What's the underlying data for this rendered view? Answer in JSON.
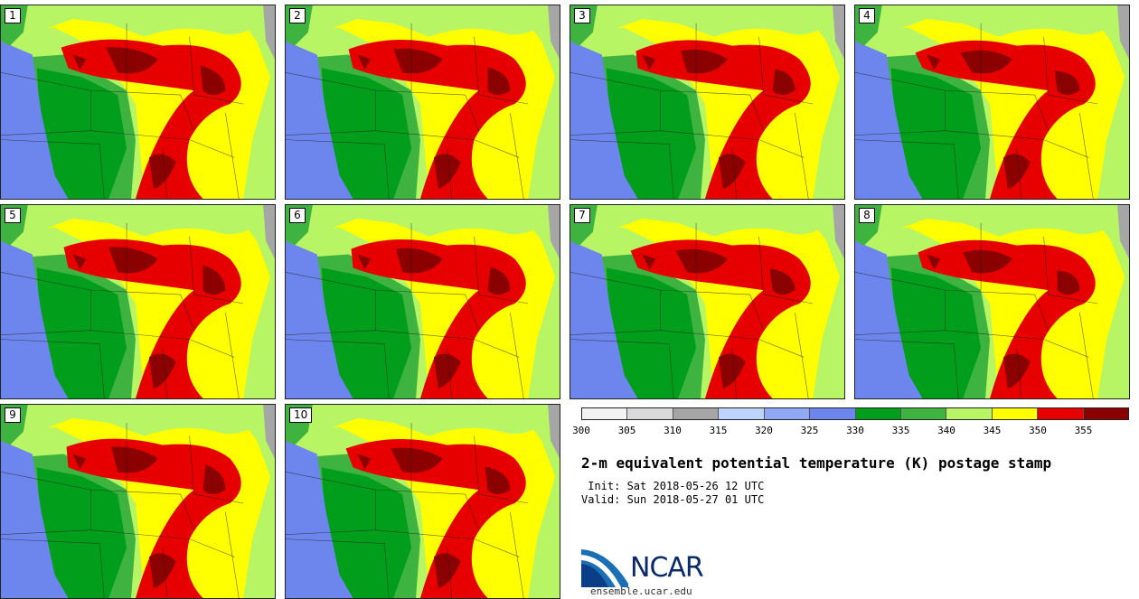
{
  "title": "2-m equivalent potential temperature (K) postage stamp",
  "init_line": " Init: Sat 2018-05-26 12 UTC",
  "valid_line": "Valid: Sun 2018-05-27 01 UTC",
  "logo_text": "NCAR",
  "url": "ensemble.ucar.edu",
  "members": [
    "1",
    "2",
    "3",
    "4",
    "5",
    "6",
    "7",
    "8",
    "9",
    "10"
  ],
  "colorbar": {
    "ticks": [
      "300",
      "305",
      "310",
      "315",
      "320",
      "325",
      "330",
      "335",
      "340",
      "345",
      "350",
      "355"
    ],
    "colors": [
      "#f2f2f2",
      "#d9d9d9",
      "#a6a6a6",
      "#bfd3ff",
      "#8fa9f5",
      "#6d86ee",
      "#009e1a",
      "#3fb33f",
      "#b7f564",
      "#ffff00",
      "#e60000",
      "#8b0000"
    ]
  },
  "map_colors": {
    "cool": "#6d86ee",
    "green_dark": "#009e1a",
    "green_mid": "#3fb33f",
    "green_light": "#b7f564",
    "yellow": "#ffff00",
    "red": "#e60000",
    "dark_red": "#8b0000",
    "grey": "#a6a6a6"
  }
}
